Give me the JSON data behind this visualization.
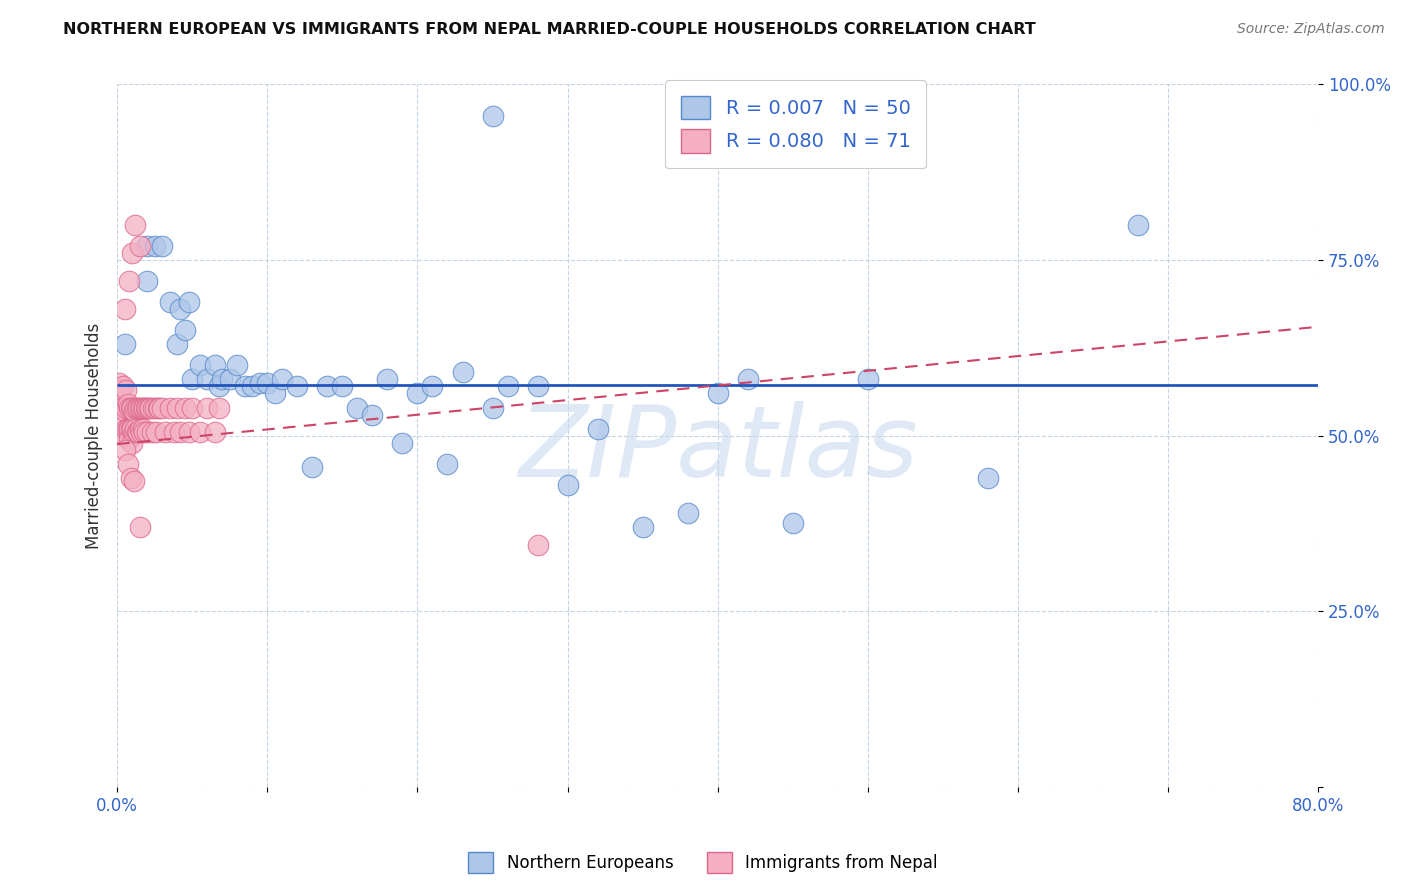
{
  "title": "NORTHERN EUROPEAN VS IMMIGRANTS FROM NEPAL MARRIED-COUPLE HOUSEHOLDS CORRELATION CHART",
  "source": "Source: ZipAtlas.com",
  "ylabel": "Married-couple Households",
  "xlim": [
    0.0,
    0.8
  ],
  "ylim": [
    0.0,
    1.0
  ],
  "xticks": [
    0.0,
    0.1,
    0.2,
    0.3,
    0.4,
    0.5,
    0.6,
    0.7,
    0.8
  ],
  "xticklabels": [
    "0.0%",
    "",
    "",
    "",
    "",
    "",
    "",
    "",
    "80.0%"
  ],
  "yticks": [
    0.0,
    0.25,
    0.5,
    0.75,
    1.0
  ],
  "yticklabels": [
    "",
    "25.0%",
    "50.0%",
    "75.0%",
    "100.0%"
  ],
  "blue_R": 0.007,
  "blue_N": 50,
  "pink_R": 0.08,
  "pink_N": 71,
  "blue_color": "#aec6e8",
  "pink_color": "#f4afc4",
  "blue_edge_color": "#5588cc",
  "pink_edge_color": "#dd6688",
  "blue_line_color": "#2255bb",
  "pink_line_color": "#cc4466",
  "watermark": "ZIPatlas",
  "legend_label_blue": "Northern Europeans",
  "legend_label_pink": "Immigrants from Nepal",
  "blue_trend_y0": 0.572,
  "blue_trend_y1": 0.572,
  "pink_trend_y0": 0.488,
  "pink_trend_y1": 0.655,
  "blue_points_x": [
    0.25,
    0.005,
    0.02,
    0.02,
    0.025,
    0.03,
    0.035,
    0.04,
    0.042,
    0.045,
    0.048,
    0.05,
    0.055,
    0.06,
    0.065,
    0.068,
    0.07,
    0.075,
    0.08,
    0.085,
    0.09,
    0.095,
    0.1,
    0.105,
    0.11,
    0.12,
    0.13,
    0.14,
    0.15,
    0.16,
    0.17,
    0.18,
    0.19,
    0.2,
    0.21,
    0.22,
    0.23,
    0.25,
    0.26,
    0.28,
    0.3,
    0.32,
    0.35,
    0.38,
    0.4,
    0.42,
    0.45,
    0.5,
    0.58,
    0.68
  ],
  "blue_points_y": [
    0.955,
    0.63,
    0.77,
    0.72,
    0.77,
    0.77,
    0.69,
    0.63,
    0.68,
    0.65,
    0.69,
    0.58,
    0.6,
    0.58,
    0.6,
    0.57,
    0.58,
    0.58,
    0.6,
    0.57,
    0.57,
    0.575,
    0.575,
    0.56,
    0.58,
    0.57,
    0.455,
    0.57,
    0.57,
    0.54,
    0.53,
    0.58,
    0.49,
    0.56,
    0.57,
    0.46,
    0.59,
    0.54,
    0.57,
    0.57,
    0.43,
    0.51,
    0.37,
    0.39,
    0.56,
    0.58,
    0.375,
    0.58,
    0.44,
    0.8
  ],
  "pink_points_x": [
    0.001,
    0.002,
    0.003,
    0.004,
    0.004,
    0.005,
    0.005,
    0.006,
    0.006,
    0.006,
    0.007,
    0.007,
    0.008,
    0.008,
    0.008,
    0.009,
    0.009,
    0.01,
    0.01,
    0.01,
    0.011,
    0.011,
    0.012,
    0.012,
    0.013,
    0.013,
    0.014,
    0.014,
    0.015,
    0.015,
    0.016,
    0.016,
    0.017,
    0.017,
    0.018,
    0.018,
    0.019,
    0.02,
    0.02,
    0.021,
    0.022,
    0.023,
    0.024,
    0.025,
    0.026,
    0.027,
    0.028,
    0.03,
    0.032,
    0.035,
    0.038,
    0.04,
    0.042,
    0.045,
    0.048,
    0.05,
    0.055,
    0.06,
    0.065,
    0.068,
    0.005,
    0.008,
    0.01,
    0.012,
    0.015,
    0.005,
    0.007,
    0.009,
    0.011,
    0.015,
    0.28
  ],
  "pink_points_y": [
    0.575,
    0.565,
    0.54,
    0.57,
    0.52,
    0.535,
    0.5,
    0.565,
    0.54,
    0.51,
    0.545,
    0.51,
    0.54,
    0.51,
    0.495,
    0.54,
    0.51,
    0.54,
    0.51,
    0.49,
    0.535,
    0.505,
    0.54,
    0.51,
    0.54,
    0.505,
    0.54,
    0.505,
    0.54,
    0.51,
    0.54,
    0.505,
    0.54,
    0.51,
    0.54,
    0.505,
    0.54,
    0.54,
    0.505,
    0.54,
    0.54,
    0.505,
    0.54,
    0.54,
    0.505,
    0.54,
    0.54,
    0.54,
    0.505,
    0.54,
    0.505,
    0.54,
    0.505,
    0.54,
    0.505,
    0.54,
    0.505,
    0.54,
    0.505,
    0.54,
    0.68,
    0.72,
    0.76,
    0.8,
    0.77,
    0.48,
    0.46,
    0.44,
    0.435,
    0.37,
    0.345
  ]
}
